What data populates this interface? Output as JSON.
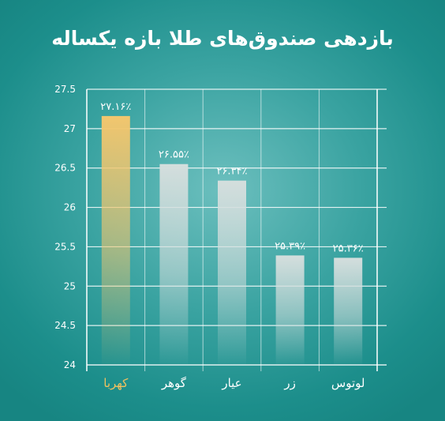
{
  "chart_data": {
    "type": "bar",
    "title": "بازدهی صندوق‌های طلا بازه یکساله",
    "categories": [
      "کهربا",
      "گوهر",
      "عیار",
      "زر",
      "لوتوس"
    ],
    "values": [
      27.16,
      26.55,
      26.34,
      25.39,
      25.36
    ],
    "data_labels": [
      "۲۷.۱۶٪",
      "۲۶.۵۵٪",
      "۲۶.۳۴٪",
      "۲۵.۳۹٪",
      "۲۵.۳۶٪"
    ],
    "highlight_index": 0,
    "ylim": [
      24,
      27.5
    ],
    "y_ticks": [
      "24",
      "24.5",
      "25",
      "25.5",
      "26",
      "26.5",
      "27",
      "27.5"
    ],
    "xlabel": "",
    "ylabel": "",
    "grid": true,
    "colors": {
      "bar": "#d4dedd",
      "highlight_bar": "#f2c66e",
      "highlight_label": "#f0c15f",
      "label": "#ffffff",
      "grid": "#ffffff"
    }
  }
}
